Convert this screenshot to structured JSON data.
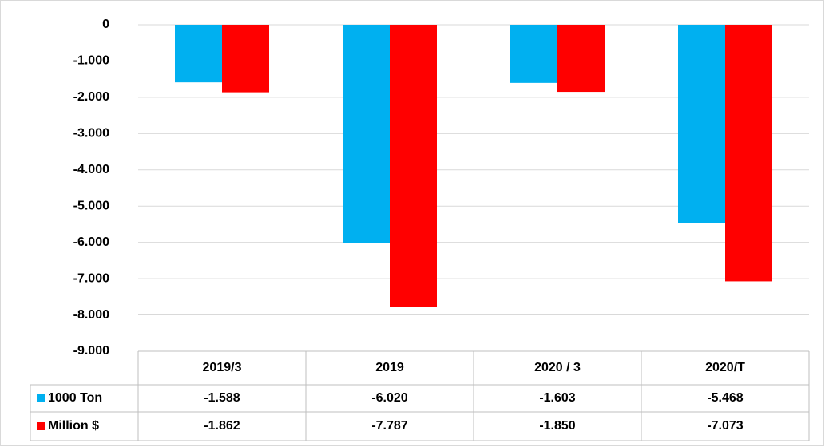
{
  "chart_data": {
    "type": "bar",
    "categories": [
      "2019/3",
      "2019",
      "2020 / 3",
      "2020/T"
    ],
    "series": [
      {
        "name": "1000 Ton",
        "color": "#00b0f0",
        "values": [
          -1588,
          -6020,
          -1603,
          -5468
        ],
        "value_labels": [
          "-1.588",
          "-6.020",
          "-1.603",
          "-5.468"
        ]
      },
      {
        "name": "Million $",
        "color": "#ff0000",
        "values": [
          -1862,
          -7787,
          -1850,
          -7073
        ],
        "value_labels": [
          "-1.862",
          "-7.787",
          "-1.850",
          "-7.073"
        ]
      }
    ],
    "ylim": [
      -9000,
      0
    ],
    "yticks": [
      0,
      {
        "value": -1000,
        "label": "-1.000"
      },
      {
        "value": -2000,
        "label": "-2.000"
      },
      {
        "value": -3000,
        "label": "-3.000"
      },
      {
        "value": -4000,
        "label": "-4.000"
      },
      {
        "value": -5000,
        "label": "-5.000"
      },
      {
        "value": -6000,
        "label": "-6.000"
      },
      {
        "value": -7000,
        "label": "-7.000"
      },
      {
        "value": -8000,
        "label": "-8.000"
      },
      {
        "value": -9000,
        "label": "-9.000"
      }
    ],
    "grid": true,
    "data_table": true
  }
}
